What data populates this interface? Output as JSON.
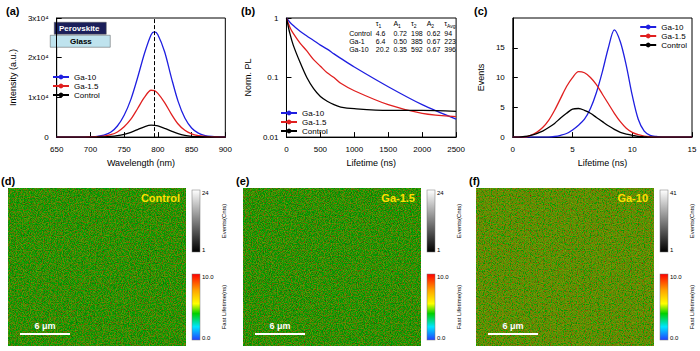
{
  "chart_data": [
    {
      "type": "line",
      "title": "(a)",
      "x_label": "Wavelength (nm)",
      "y_label": "Intensity (a.u.)",
      "x": [
        650,
        660,
        670,
        680,
        690,
        700,
        710,
        720,
        730,
        740,
        750,
        760,
        770,
        780,
        790,
        795,
        800,
        810,
        820,
        830,
        840,
        850,
        860,
        870,
        880,
        890,
        900
      ],
      "series": [
        {
          "name": "Ga-10",
          "color": "#1f1fe0",
          "values": [
            0,
            0,
            0,
            0,
            0,
            100,
            200,
            500,
            1200,
            2800,
            5500,
            9500,
            15000,
            21000,
            25800,
            26500,
            25800,
            21500,
            15000,
            9000,
            4800,
            2300,
            1000,
            400,
            150,
            50,
            0
          ]
        },
        {
          "name": "Ga-1.5",
          "color": "#e01f1f",
          "values": [
            0,
            0,
            0,
            0,
            0,
            50,
            100,
            250,
            600,
            1300,
            2600,
            4500,
            7200,
            10000,
            11800,
            11700,
            11000,
            8700,
            5800,
            3300,
            1700,
            800,
            350,
            150,
            50,
            20,
            0
          ]
        },
        {
          "name": "Control",
          "color": "#000000",
          "values": [
            0,
            0,
            0,
            0,
            0,
            10,
            30,
            70,
            160,
            350,
            700,
            1200,
            1900,
            2600,
            3000,
            2950,
            2800,
            2200,
            1500,
            850,
            430,
            200,
            90,
            40,
            15,
            5,
            0
          ]
        }
      ],
      "xlim": [
        650,
        900
      ],
      "xticks": [
        650,
        700,
        750,
        800,
        850,
        900
      ],
      "ylim": [
        0,
        30000
      ],
      "yticks": [
        0,
        {
          "value": 10000,
          "label": "1x10⁴"
        },
        {
          "value": 20000,
          "label": "2x10⁴"
        },
        {
          "value": 30000,
          "label": "3x10⁴"
        }
      ],
      "legend": "left",
      "inset_layers": [
        "Perovskite",
        "Glass"
      ],
      "reference_x": 795
    },
    {
      "type": "line",
      "title": "(b)",
      "x_label": "Lifetime (ns)",
      "y_label": "Norm. PL",
      "log": "y",
      "x": [
        0,
        50,
        100,
        200,
        300,
        400,
        500,
        600,
        700,
        800,
        1000,
        1500,
        2000,
        2500
      ],
      "series": [
        {
          "name": "Ga-10",
          "color": "#1f1fe0",
          "values": [
            1,
            0.85,
            0.75,
            0.6,
            0.5,
            0.42,
            0.35,
            0.3,
            0.25,
            0.21,
            0.15,
            0.07,
            0.035,
            0.02
          ]
        },
        {
          "name": "Ga-1.5",
          "color": "#e01f1f",
          "values": [
            1,
            0.7,
            0.55,
            0.38,
            0.28,
            0.2,
            0.155,
            0.12,
            0.1,
            0.08,
            0.06,
            0.035,
            0.025,
            0.022
          ]
        },
        {
          "name": "Control",
          "color": "#000000",
          "values": [
            1,
            0.55,
            0.35,
            0.18,
            0.1,
            0.065,
            0.048,
            0.04,
            0.035,
            0.032,
            0.03,
            0.028,
            0.028,
            0.027
          ]
        }
      ],
      "xlim": [
        0,
        2500
      ],
      "xticks": [
        0,
        500,
        1000,
        1500,
        2000,
        2500
      ],
      "ylim": [
        0.01,
        1
      ],
      "yticks": [
        0.01,
        0.1,
        1
      ],
      "legend": "lower-left",
      "table": {
        "header": [
          "τ1",
          "A1",
          "τ2",
          "A2",
          "τAvg"
        ],
        "rows": [
          [
            "Control",
            "4.6",
            "0.72",
            "198",
            "0.62",
            "94"
          ],
          [
            "Ga-1",
            "6.4",
            "0.50",
            "385",
            "0.67",
            "223"
          ],
          [
            "Ga-10",
            "20.2",
            "0.35",
            "592",
            "0.67",
            "396"
          ]
        ]
      }
    },
    {
      "type": "line",
      "title": "(c)",
      "x_label": "Lifetime (ns)",
      "y_label": "Events",
      "x": [
        0,
        0.5,
        1,
        1.5,
        2,
        2.5,
        3,
        3.5,
        4,
        4.5,
        5,
        5.5,
        6,
        6.5,
        7,
        7.5,
        8,
        8.5,
        9,
        9.5,
        10,
        10.5,
        11,
        11.5,
        12,
        12.5,
        13,
        13.5,
        14,
        14.5,
        15
      ],
      "series": [
        {
          "name": "Ga-10",
          "color": "#1f1fe0",
          "values": [
            0,
            0,
            0,
            0,
            0,
            0,
            0,
            0.1,
            0.3,
            0.6,
            1.2,
            2,
            3,
            4.8,
            7.5,
            11,
            15,
            18,
            16,
            12,
            7,
            3,
            1,
            0.3,
            0.1,
            0,
            0,
            0,
            0,
            0,
            0
          ]
        },
        {
          "name": "Ga-1.5",
          "color": "#e01f1f",
          "values": [
            0,
            0,
            0,
            0.3,
            0.8,
            1.6,
            2.8,
            4.5,
            6.5,
            8.5,
            10,
            11,
            10.8,
            10,
            8.8,
            7.2,
            5.6,
            4,
            2.6,
            1.5,
            0.8,
            0.4,
            0.15,
            0.05,
            0,
            0,
            0,
            0,
            0,
            0,
            0
          ]
        },
        {
          "name": "Control",
          "color": "#000000",
          "values": [
            0,
            0,
            0.1,
            0.3,
            0.6,
            1,
            1.6,
            2.3,
            3.2,
            4,
            4.7,
            4.8,
            4.5,
            4,
            3.3,
            2.6,
            1.9,
            1.3,
            0.8,
            0.5,
            0.3,
            0.1,
            0.05,
            0,
            0,
            0,
            0,
            0,
            0,
            0,
            0
          ]
        }
      ],
      "xlim": [
        0,
        15
      ],
      "xticks": [
        0,
        5,
        10,
        15
      ],
      "ylim": [
        0,
        20
      ],
      "yticks": [
        0,
        5,
        10,
        15
      ],
      "legend": "upper-right"
    }
  ],
  "images": [
    {
      "label": "(d)",
      "title": "Control",
      "scale_bar": "6 μm",
      "colorbars": [
        {
          "title": "Events(Cnts)",
          "range": [
            1,
            24
          ]
        },
        {
          "title": "Fast Lifetime(ns)",
          "range": [
            {
              "value": 0,
              "label": "0.0"
            },
            {
              "value": 10,
              "label": "10.0"
            }
          ]
        }
      ]
    },
    {
      "label": "(e)",
      "title": "Ga-1.5",
      "scale_bar": "6 μm",
      "colorbars": [
        {
          "title": "Events(Cnts)",
          "range": [
            1,
            24
          ]
        },
        {
          "title": "Fast Lifetime(ns)",
          "range": [
            {
              "value": 0,
              "label": "0.0"
            },
            {
              "value": 10,
              "label": "10.0"
            }
          ]
        }
      ]
    },
    {
      "label": "(f)",
      "title": "Ga-10",
      "scale_bar": "6 μm",
      "colorbars": [
        {
          "title": "Events(Cnts)",
          "range": [
            1,
            41
          ]
        },
        {
          "title": "Fast Lifetime(ns)",
          "range": [
            {
              "value": 0,
              "label": "0.0"
            },
            {
              "value": 10,
              "label": "10.0"
            }
          ]
        }
      ]
    }
  ]
}
